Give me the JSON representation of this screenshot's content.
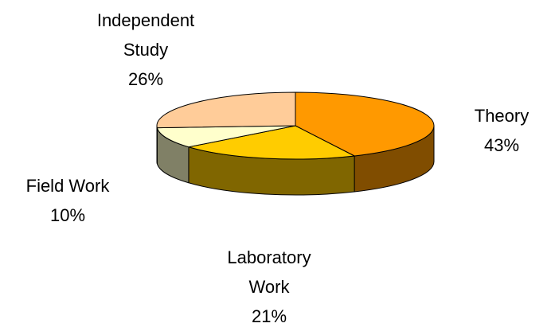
{
  "chart_data": {
    "type": "pie",
    "categories": [
      "Theory",
      "Laboratory Work",
      "Field Work",
      "Independent Study"
    ],
    "values": [
      43,
      21,
      10,
      26
    ],
    "value_labels": [
      "43%",
      "21%",
      "10%",
      "26%"
    ],
    "colors": [
      "#ff9900",
      "#ffcc00",
      "#ffffcc",
      "#ffcc99"
    ],
    "three_d": true
  }
}
